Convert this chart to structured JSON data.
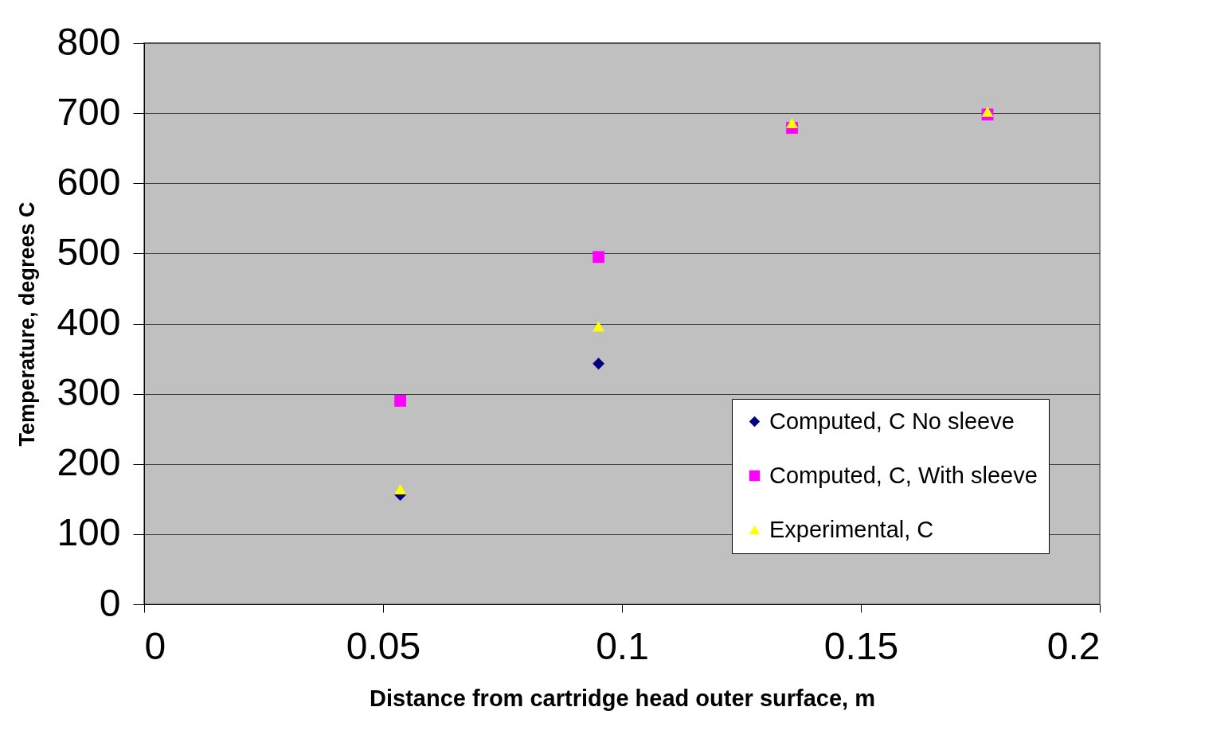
{
  "chart_data": {
    "type": "scatter",
    "xlabel": "Distance from cartridge head outer surface, m",
    "ylabel": "Temperature, degrees C",
    "x": [
      0.0536,
      0.0951,
      0.1356,
      0.1765
    ],
    "series": [
      {
        "name": "Computed, C No sleeve",
        "color": "#000080",
        "marker": "diamond",
        "values": [
          156,
          343,
          null,
          null
        ]
      },
      {
        "name": "Computed, C, With sleeve",
        "color": "#ff00ff",
        "marker": "square",
        "values": [
          290,
          495,
          679,
          698
        ]
      },
      {
        "name": "Experimental, C",
        "color": "#ffff00",
        "marker": "triangle",
        "values": [
          164,
          396,
          686,
          702
        ]
      }
    ],
    "xlim": [
      0,
      0.2
    ],
    "xticks": [
      0,
      0.05,
      0.1,
      0.15,
      0.2
    ],
    "ylim": [
      0,
      800
    ],
    "yticks": [
      0,
      100,
      200,
      300,
      400,
      500,
      600,
      700,
      800
    ],
    "grid": "y",
    "legend": "bottom right"
  }
}
